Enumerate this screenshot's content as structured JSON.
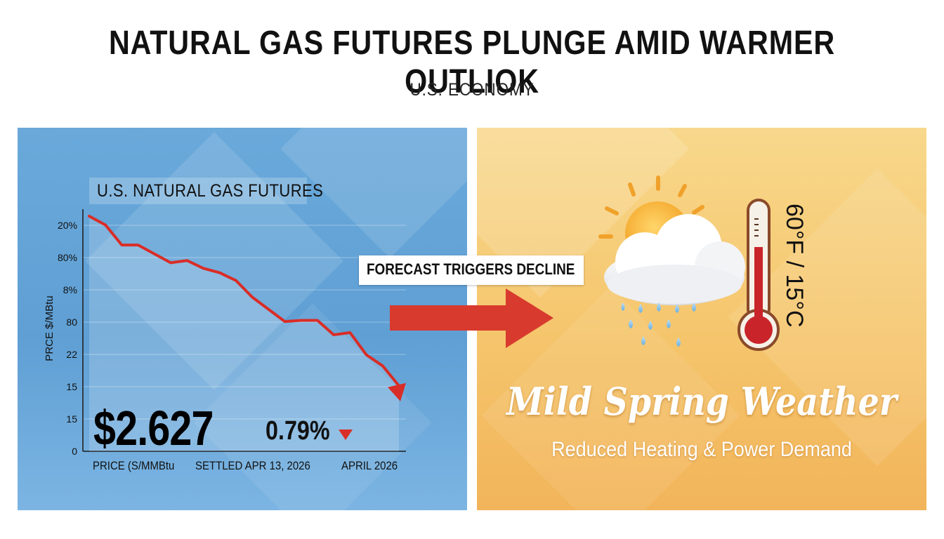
{
  "header": {
    "title": "NATURAL GAS FUTURES PLUNGE AMID WARMER OUTLIOK",
    "category": "U.S. ECONOMY"
  },
  "left_panel": {
    "chart_title": "U.S. NATURAL GAS FUTURES",
    "price": "$2.627",
    "change": "0.79%",
    "change_direction": "down",
    "footer_labels": [
      "PRICE (S/MMBtu",
      "SETTLED APR 13, 2026",
      "APRIL 2026"
    ]
  },
  "arrow": {
    "label": "FORECAST TRIGGERS DECLINE"
  },
  "right_panel": {
    "temperature": "60°F / 15°C",
    "headline": "Mild Spring Weather",
    "subheadline": "Reduced Heating & Power Demand",
    "icons": [
      "sun-icon",
      "cloud-icon",
      "rain-icon",
      "thermometer-icon"
    ]
  },
  "colors": {
    "left_bg": "#6aa9da",
    "right_bg": "#f5c56c",
    "line": "#d92d27",
    "arrow": "#d83a2e"
  },
  "chart_data": {
    "type": "line",
    "title": "U.S. NATURAL GAS FUTURES",
    "ylabel": "PRCE $/MBtu",
    "xlabel": "",
    "y_tick_labels": [
      "0",
      "15",
      "15",
      "22",
      "80",
      "8%",
      "80%",
      "20%"
    ],
    "y": [
      10.6,
      10.2,
      9.3,
      9.3,
      8.9,
      8.5,
      8.6,
      8.25,
      8.05,
      7.7,
      6.95,
      6.4,
      5.85,
      5.9,
      5.9,
      5.25,
      5.35,
      4.35,
      3.85,
      2.95
    ],
    "ylim": [
      0,
      10.6
    ],
    "grid": true,
    "legend": "none"
  }
}
